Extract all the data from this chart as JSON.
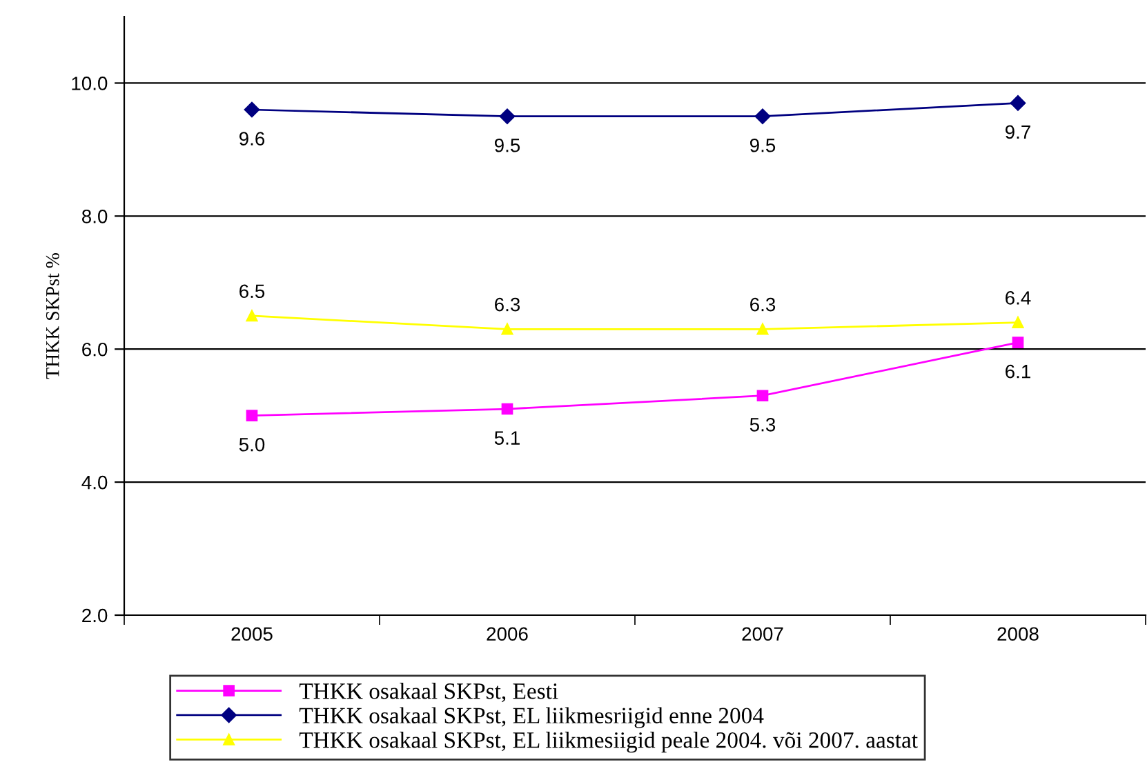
{
  "chart_data": {
    "type": "line",
    "ylabel": "THKK SKPst %",
    "categories": [
      "2005",
      "2006",
      "2007",
      "2008"
    ],
    "series": [
      {
        "name": "THKK osakaal SKPst, Eesti",
        "color": "#ff00ff",
        "marker": "square",
        "values": [
          5.0,
          5.1,
          5.3,
          6.1
        ],
        "value_labels": [
          "5.0",
          "5.1",
          "5.3",
          "6.1"
        ]
      },
      {
        "name": "THKK osakaal SKPst, EL liikmesriigid enne 2004",
        "color": "#000080",
        "marker": "diamond",
        "values": [
          9.6,
          9.5,
          9.5,
          9.7
        ],
        "value_labels": [
          "9.6",
          "9.5",
          "9.5",
          "9.7"
        ]
      },
      {
        "name": "THKK osakaal SKPst, EL liikmesiigid peale 2004. või 2007. aastat",
        "color": "#ffff00",
        "marker": "triangle",
        "values": [
          6.5,
          6.3,
          6.3,
          6.4
        ],
        "value_labels": [
          "6.5",
          "6.3",
          "6.3",
          "6.4"
        ]
      }
    ],
    "ylim": [
      2,
      11
    ],
    "yticks": [
      {
        "value": 2,
        "label": "2.0"
      },
      {
        "value": 4,
        "label": "4.0"
      },
      {
        "value": 6,
        "label": "6.0"
      },
      {
        "value": 8,
        "label": "8.0"
      },
      {
        "value": 10,
        "label": "10.0"
      }
    ],
    "grid": "y",
    "legend": "bottom",
    "line_style": "solid"
  }
}
